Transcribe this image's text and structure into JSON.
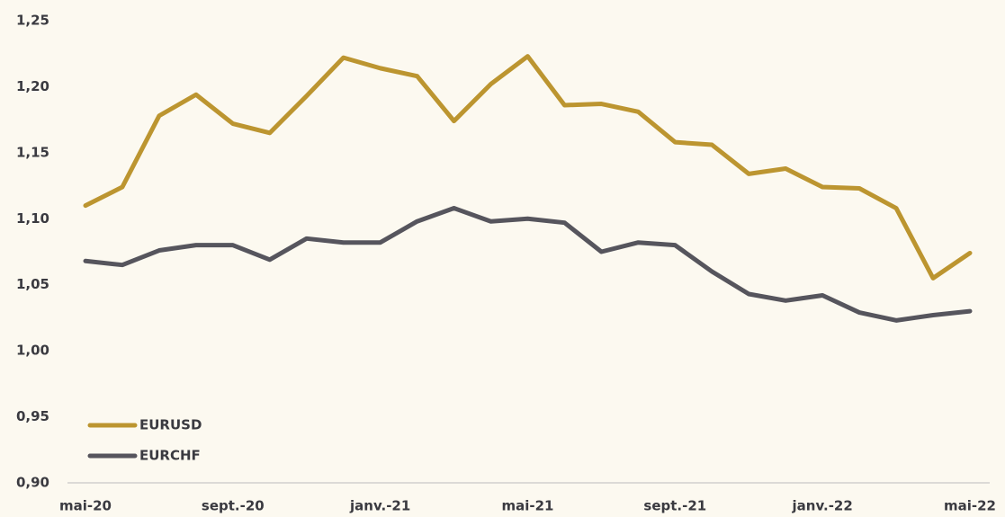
{
  "chart_data": {
    "type": "line",
    "categories": [
      "mai-20",
      null,
      null,
      null,
      "sept.-20",
      null,
      null,
      null,
      "janv.-21",
      null,
      null,
      null,
      "mai-21",
      null,
      null,
      null,
      "sept.-21",
      null,
      null,
      null,
      "janv.-22",
      null,
      null,
      null,
      "mai-22"
    ],
    "series": [
      {
        "name": "EURUSD",
        "color": "#bc9530",
        "values": [
          1.11,
          1.124,
          1.178,
          1.194,
          1.172,
          1.165,
          1.193,
          1.222,
          1.214,
          1.208,
          1.174,
          1.202,
          1.223,
          1.186,
          1.187,
          1.181,
          1.158,
          1.156,
          1.134,
          1.138,
          1.124,
          1.123,
          1.108,
          1.055,
          1.074
        ]
      },
      {
        "name": "EURCHF",
        "color": "#56555d",
        "values": [
          1.068,
          1.065,
          1.076,
          1.08,
          1.08,
          1.069,
          1.085,
          1.082,
          1.082,
          1.098,
          1.108,
          1.098,
          1.1,
          1.097,
          1.075,
          1.082,
          1.08,
          1.06,
          1.043,
          1.038,
          1.042,
          1.029,
          1.023,
          1.027,
          1.03
        ]
      }
    ],
    "ylim": [
      0.9,
      1.25
    ],
    "yticks": [
      {
        "value": 0.9,
        "label": "0,90"
      },
      {
        "value": 0.95,
        "label": "0,95"
      },
      {
        "value": 1.0,
        "label": "1,00"
      },
      {
        "value": 1.05,
        "label": "1,05"
      },
      {
        "value": 1.1,
        "label": "1,10"
      },
      {
        "value": 1.15,
        "label": "1,15"
      },
      {
        "value": 1.2,
        "label": "1,20"
      },
      {
        "value": 1.25,
        "label": "1,25"
      }
    ],
    "legend": "lower left"
  }
}
